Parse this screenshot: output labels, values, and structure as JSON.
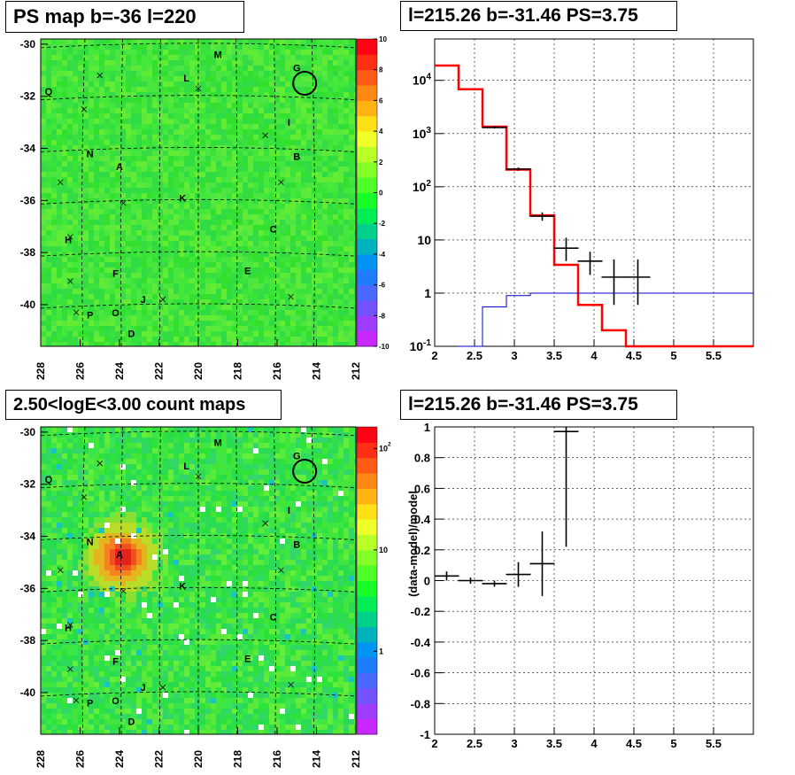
{
  "titles": {
    "tl": "PS map b=-36 l=220",
    "tr": "l=215.26 b=-31.46 PS=3.75",
    "bl": "2.50<logE<3.00 count maps",
    "br": "l=215.26 b=-31.46 PS=3.75"
  },
  "colors": {
    "map_background": "#33e633",
    "blob": "#e8331a",
    "model_line": "#ff0000",
    "background_line": "#0000cc",
    "data": "#000000"
  },
  "chart_data": [
    {
      "type": "heatmap",
      "panel": "ps-map",
      "title": "PS map b=-36 l=220",
      "x_ticks": [
        "228",
        "226",
        "224",
        "222",
        "220",
        "218",
        "216",
        "214",
        "212"
      ],
      "y_ticks": [
        "-30",
        "-32",
        "-34",
        "-36",
        "-38",
        "-40"
      ],
      "xlim": [
        228,
        212
      ],
      "ylim": [
        -41.6,
        -29.8
      ],
      "z_ticks": [
        "10",
        "8",
        "6",
        "4",
        "2",
        "0",
        "-2",
        "-4",
        "-6",
        "-8",
        "-10"
      ],
      "zlim": [
        -10,
        10
      ],
      "source_labels": [
        {
          "label": "A",
          "l": 224.0,
          "b": -34.7
        },
        {
          "label": "B",
          "l": 215.0,
          "b": -34.3
        },
        {
          "label": "C",
          "l": 216.2,
          "b": -37.1
        },
        {
          "label": "D",
          "l": 223.4,
          "b": -41.1
        },
        {
          "label": "E",
          "l": 217.5,
          "b": -38.7
        },
        {
          "label": "F",
          "l": 224.2,
          "b": -38.8
        },
        {
          "label": "G",
          "l": 215.0,
          "b": -30.9
        },
        {
          "label": "H",
          "l": 226.6,
          "b": -37.5
        },
        {
          "label": "I",
          "l": 215.4,
          "b": -33.0
        },
        {
          "label": "J",
          "l": 222.8,
          "b": -39.8
        },
        {
          "label": "K",
          "l": 220.8,
          "b": -35.9
        },
        {
          "label": "L",
          "l": 220.6,
          "b": -31.3
        },
        {
          "label": "M",
          "l": 219.0,
          "b": -30.4
        },
        {
          "label": "N",
          "l": 225.5,
          "b": -34.2
        },
        {
          "label": "O",
          "l": 224.2,
          "b": -40.3
        },
        {
          "label": "P",
          "l": 225.5,
          "b": -40.4
        },
        {
          "label": "Q",
          "l": 227.6,
          "b": -31.8
        }
      ],
      "crosses": [
        [
          227.0,
          -35.3
        ],
        [
          226.5,
          -37.4
        ],
        [
          225.8,
          -32.5
        ],
        [
          225.0,
          -31.2
        ],
        [
          223.8,
          -36.1
        ],
        [
          226.5,
          -39.1
        ],
        [
          220.0,
          -31.7
        ],
        [
          216.6,
          -33.5
        ],
        [
          215.8,
          -35.3
        ],
        [
          215.3,
          -39.7
        ],
        [
          221.8,
          -39.8
        ],
        [
          226.2,
          -40.3
        ]
      ],
      "circle": {
        "l": 214.6,
        "b": -31.5
      }
    },
    {
      "type": "line",
      "panel": "spectrum",
      "title": "l=215.26 b=-31.46 PS=3.75",
      "x_ticks": [
        "2",
        "2.5",
        "3",
        "3.5",
        "4",
        "4.5",
        "5",
        "5.5"
      ],
      "y_ticks": [
        "10^-1",
        "1",
        "10",
        "10^2",
        "10^3",
        "10^4"
      ],
      "xlim": [
        2,
        6
      ],
      "ylim": [
        0.1,
        60000
      ],
      "yscale": "log",
      "grid": true,
      "series": [
        {
          "role": "model",
          "color": "#ff0000",
          "x": [
            2.0,
            2.3,
            2.3,
            2.6,
            2.6,
            2.9,
            2.9,
            3.2,
            3.2,
            3.5,
            3.5,
            3.8,
            3.8,
            4.1,
            4.1,
            4.4,
            4.4,
            6.0
          ],
          "y": [
            19000,
            19000,
            6800,
            6800,
            1350,
            1350,
            210,
            210,
            29,
            29,
            3.4,
            3.4,
            0.6,
            0.6,
            0.2,
            0.2,
            0.1,
            0.1
          ]
        },
        {
          "role": "background",
          "color": "#0000cc",
          "x": [
            2.3,
            2.6,
            2.6,
            2.9,
            2.9,
            3.2,
            3.2,
            6.0
          ],
          "y": [
            0.1,
            0.1,
            0.55,
            0.55,
            0.9,
            0.9,
            1.0,
            1.0
          ]
        }
      ],
      "points": [
        {
          "x": 2.75,
          "y": 1300,
          "ylo": 1240,
          "yhi": 1360
        },
        {
          "x": 3.05,
          "y": 215,
          "ylo": 200,
          "yhi": 230
        },
        {
          "x": 3.35,
          "y": 28,
          "ylo": 23,
          "yhi": 33
        },
        {
          "x": 3.65,
          "y": 7,
          "ylo": 4,
          "yhi": 11
        },
        {
          "x": 3.95,
          "y": 4,
          "ylo": 2.2,
          "yhi": 6
        },
        {
          "x": 4.25,
          "y": 2,
          "ylo": 0.6,
          "yhi": 4.3
        },
        {
          "x": 4.55,
          "y": 2,
          "ylo": 0.6,
          "yhi": 4.3
        }
      ]
    },
    {
      "type": "heatmap",
      "panel": "count-map",
      "title": "2.50<logE<3.00 count maps",
      "x_ticks": [
        "228",
        "226",
        "224",
        "222",
        "220",
        "218",
        "216",
        "214",
        "212"
      ],
      "y_ticks": [
        "-30",
        "-32",
        "-34",
        "-36",
        "-38",
        "-40"
      ],
      "xlim": [
        228,
        212
      ],
      "ylim": [
        -41.6,
        -29.8
      ],
      "z_ticks": [
        "10^2",
        "10",
        "1"
      ],
      "zscale": "log",
      "hotspot": {
        "label": "A",
        "l": 224.0,
        "b": -34.7
      }
    },
    {
      "type": "scatter",
      "panel": "residuals",
      "title": "l=215.26 b=-31.46 PS=3.75",
      "ylabel": "(data-model)/model",
      "x_ticks": [
        "2",
        "2.5",
        "3",
        "3.5",
        "4",
        "4.5",
        "5",
        "5.5"
      ],
      "y_ticks": [
        "1",
        "0.8",
        "0.6",
        "0.4",
        "0.2",
        "0",
        "-0.2",
        "-0.4",
        "-0.6",
        "-0.8",
        "-1"
      ],
      "xlim": [
        2,
        6
      ],
      "ylim": [
        -1,
        1
      ],
      "grid": true,
      "points": [
        {
          "x": 2.15,
          "y": 0.03,
          "ylo": 0.0,
          "yhi": 0.06
        },
        {
          "x": 2.45,
          "y": 0.0,
          "ylo": -0.02,
          "yhi": 0.02
        },
        {
          "x": 2.75,
          "y": -0.02,
          "ylo": -0.04,
          "yhi": 0.0
        },
        {
          "x": 3.05,
          "y": 0.04,
          "ylo": -0.04,
          "yhi": 0.12
        },
        {
          "x": 3.35,
          "y": 0.11,
          "ylo": -0.1,
          "yhi": 0.32
        },
        {
          "x": 3.65,
          "y": 0.97,
          "ylo": 0.22,
          "yhi": 1.0
        }
      ]
    }
  ]
}
